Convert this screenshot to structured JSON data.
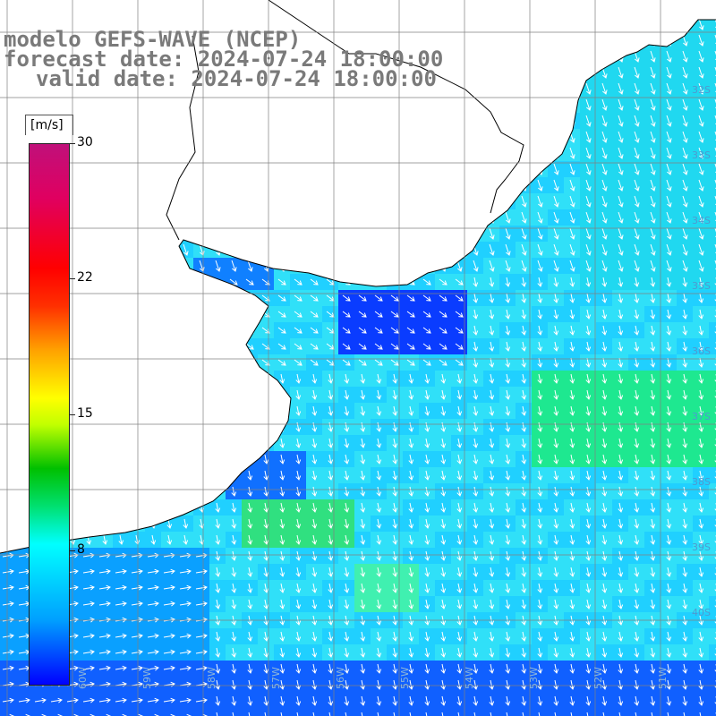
{
  "title": {
    "model": "modelo GEFS-WAVE (NCEP)",
    "forecast": "forecast date: 2024-07-24 18:00:00",
    "valid": "valid date: 2024-07-24 18:00:00"
  },
  "colorbar": {
    "unit": "[m/s]",
    "min": 0,
    "max": 30,
    "ticks": [
      "30",
      "22",
      "15",
      "8"
    ],
    "tick_values": [
      30,
      22,
      15,
      8
    ],
    "colors": [
      "#0000ff",
      "#00a0ff",
      "#00ffff",
      "#00c000",
      "#ffff00",
      "#ff0000",
      "#c0107a"
    ]
  },
  "map": {
    "land_color": "#ffffff",
    "coast_color": "#000000",
    "arrow_color": "#ffffff",
    "grid_color": "#808080",
    "lat_labels": [
      "32S",
      "33S",
      "34S",
      "35S",
      "36S",
      "37S",
      "38S",
      "39S",
      "40S"
    ],
    "lat_values": [
      -32,
      -33,
      -34,
      -35,
      -36,
      -37,
      -38,
      -39,
      -40
    ],
    "lon_labels": [
      "60W",
      "59W",
      "58W",
      "57W",
      "56W",
      "55W",
      "54W",
      "53W",
      "52W",
      "51W"
    ]
  }
}
